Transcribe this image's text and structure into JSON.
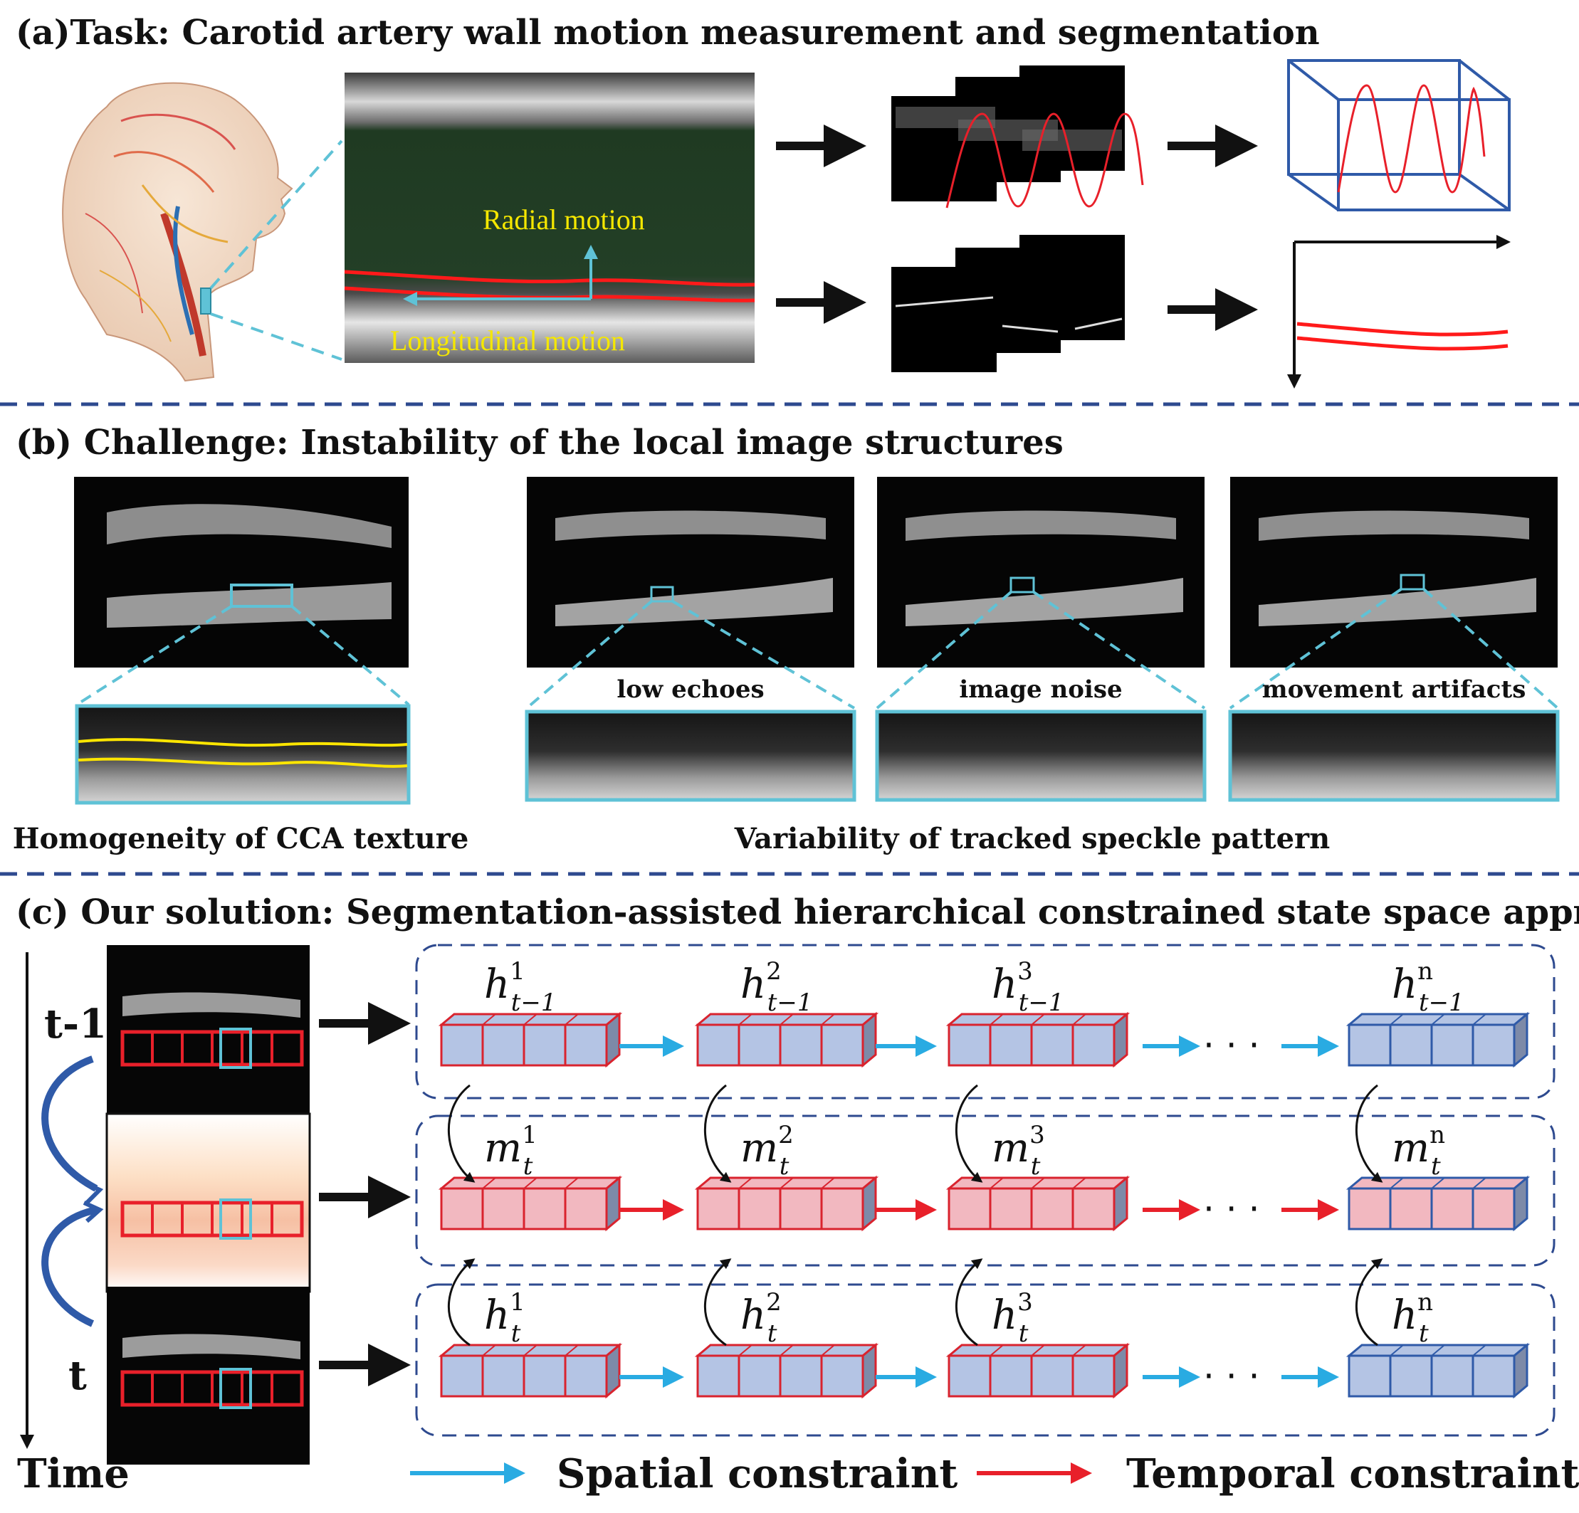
{
  "panel_a": {
    "title": "(a)Task: Carotid artery wall motion measurement and segmentation",
    "radial_label": "Radial motion",
    "longitudinal_label": "Longitudinal motion"
  },
  "panel_b": {
    "title": "(b) Challenge: Instability of the local image structures",
    "zoom_labels": [
      "low echoes",
      "image noise",
      "movement artifacts"
    ],
    "caption_left": "Homogeneity of  CCA texture",
    "caption_right": "Variability of tracked speckle pattern"
  },
  "panel_c": {
    "title": "(c) Our solution: Segmentation-assisted hierarchical constrained state space approach",
    "frame_labels": [
      "t-1",
      "t"
    ],
    "time_label": "Time",
    "rows": [
      {
        "base": "h",
        "sub": "t−1",
        "sups": [
          "1",
          "2",
          "3",
          "n"
        ]
      },
      {
        "base": "m",
        "sub": "t",
        "sups": [
          "1",
          "2",
          "3",
          "n"
        ]
      },
      {
        "base": "h",
        "sub": "t",
        "sups": [
          "1",
          "2",
          "3",
          "n"
        ]
      }
    ],
    "ellipsis": "· · ·",
    "legend": {
      "spatial": "Spatial constraint",
      "temporal": "Temporal constraint"
    }
  },
  "colors": {
    "cyan_arrow": "#29abe2",
    "red_arrow": "#e8202a",
    "divider": "#2e4a8f",
    "blue_cube": "#b4c4e4",
    "pink_cube": "#f2b8c0",
    "red_edge": "#d9232e",
    "blue_edge": "#2f5aa8"
  }
}
